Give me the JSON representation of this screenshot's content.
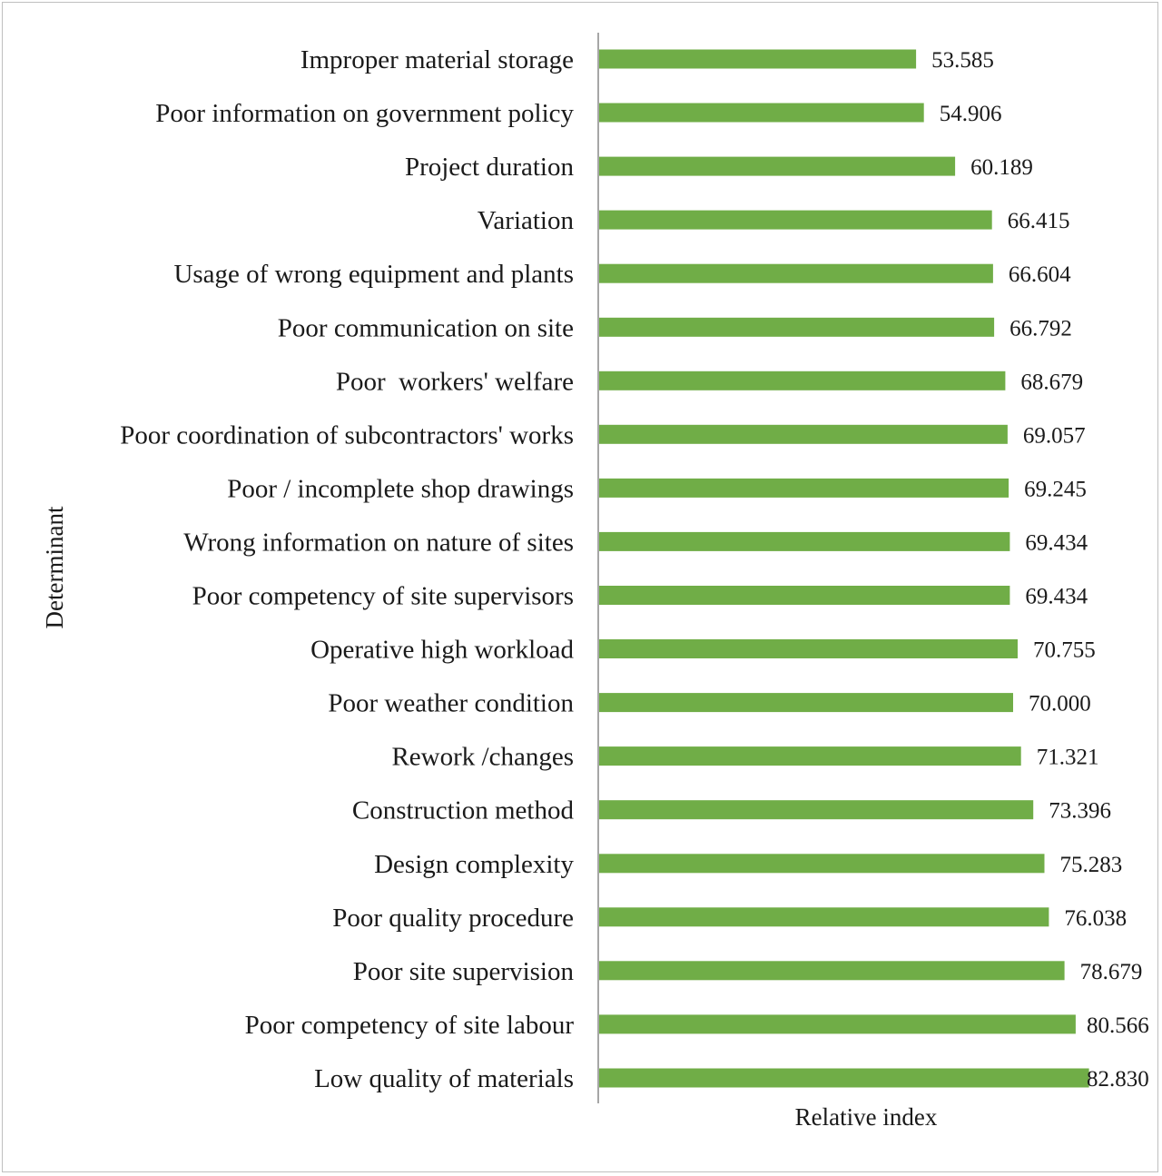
{
  "chart_data": {
    "type": "bar",
    "orientation": "horizontal",
    "title": "",
    "xlabel": "Relative index",
    "ylabel": "Determinant",
    "xlim": [
      0,
      85
    ],
    "grid": false,
    "bar_color": "#70AD47",
    "value_format": "3-decimals",
    "categories": [
      "Improper material storage",
      "Poor information on government policy",
      "Project duration",
      "Variation",
      "Usage of wrong equipment and plants",
      "Poor communication on site",
      "Poor  workers' welfare",
      "Poor coordination of subcontractors' works",
      "Poor / incomplete shop drawings",
      "Wrong information on nature of sites",
      "Poor competency of site supervisors",
      "Operative high workload",
      "Poor weather condition",
      "Rework /changes",
      "Construction method",
      "Design complexity",
      "Poor quality procedure",
      "Poor site supervision",
      "Poor competency of site labour",
      "Low quality of materials"
    ],
    "values": [
      53.585,
      54.906,
      60.189,
      66.415,
      66.604,
      66.792,
      68.679,
      69.057,
      69.245,
      69.434,
      69.434,
      70.755,
      70.0,
      71.321,
      73.396,
      75.283,
      76.038,
      78.679,
      80.566,
      82.83
    ],
    "value_labels": [
      "53.585",
      "54.906",
      "60.189",
      "66.415",
      "66.604",
      "66.792",
      "68.679",
      "69.057",
      "69.245",
      "69.434",
      "69.434",
      "70.755",
      "70.000",
      "71.321",
      "73.396",
      "75.283",
      "76.038",
      "78.679",
      "80.566",
      "82.830"
    ]
  }
}
